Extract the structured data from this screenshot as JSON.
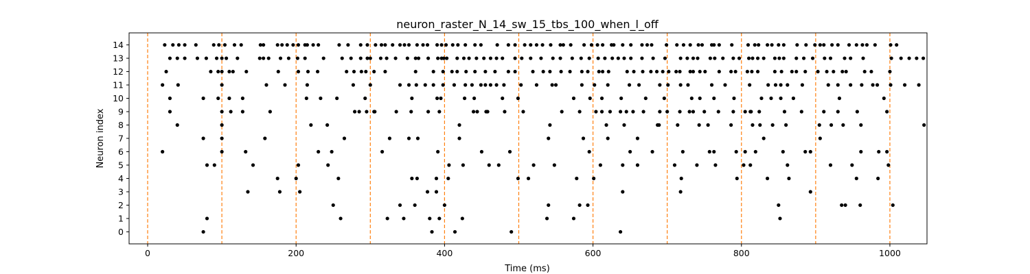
{
  "chart_data": {
    "type": "scatter",
    "title": "neuron_raster_N_14_sw_15_tbs_100_when_l_off",
    "xlabel": "Time (ms)",
    "ylabel": "Neuron index",
    "xlim": [
      -25,
      1050
    ],
    "ylim": [
      -0.9,
      14.9
    ],
    "xticks": [
      0,
      200,
      400,
      600,
      800,
      1000
    ],
    "yticks": [
      0,
      1,
      2,
      3,
      4,
      5,
      6,
      7,
      8,
      9,
      10,
      11,
      12,
      13,
      14
    ],
    "grid": false,
    "marker_color": "#000000",
    "vline_color": "#ff7f0e",
    "vlines": [
      0,
      100,
      200,
      300,
      400,
      500,
      600,
      700,
      800,
      900,
      1000
    ],
    "spikes": [
      [
        [
          75,
          383,
          414,
          490,
          637
        ],
        [
          80,
          260,
          323,
          345,
          380,
          393,
          424,
          538,
          574,
          852
        ],
        [
          250,
          340,
          400,
          360,
          540,
          593,
          582,
          850,
          935,
          940,
          960,
          1004
        ],
        [
          135,
          178,
          205,
          377,
          389,
          640,
          718,
          893
        ],
        [
          175,
          200,
          257,
          356,
          363,
          389,
          405,
          499,
          513,
          578,
          601,
          719,
          794,
          835,
          864,
          955,
          984
        ],
        [
          80,
          90,
          142,
          203,
          243,
          406,
          425,
          460,
          473,
          520,
          548,
          610,
          640,
          660,
          710,
          740,
          765,
          803,
          812,
          862,
          920,
          949,
          998
        ],
        [
          20,
          100,
          132,
          230,
          248,
          316,
          391,
          450,
          488,
          595,
          650,
          680,
          721,
          757,
          763,
          793,
          805,
          819,
          856,
          886,
          893,
          961,
          985,
          996
        ],
        [
          75,
          100,
          158,
          265,
          326,
          352,
          364,
          420,
          540,
          587,
          620,
          660,
          830,
          906
        ],
        [
          40,
          100,
          220,
          242,
          420,
          542,
          618,
          642,
          687,
          689,
          714,
          743,
          755,
          786,
          825,
          815,
          842,
          860,
          905,
          921,
          937,
          961,
          1046
        ],
        [
          30,
          100,
          112,
          128,
          165,
          279,
          285,
          295,
          305,
          306,
          335,
          355,
          378,
          393,
          439,
          444,
          456,
          458,
          481,
          506,
          558,
          582,
          604,
          612,
          623,
          637,
          645,
          654,
          668,
          690,
          700,
          717,
          730,
          735,
          750,
          769,
          789,
          805,
          812,
          813,
          824,
          858,
          881,
          911,
          930,
          956,
          996
        ],
        [
          30,
          75,
          95,
          110,
          128,
          214,
          233,
          255,
          293,
          356,
          390,
          395,
          427,
          440,
          478,
          499,
          574,
          596,
          612,
          638,
          671,
          696,
          733,
          744,
          763,
          790,
          827,
          840,
          853,
          870,
          932,
          992
        ],
        [
          20,
          41,
          100,
          160,
          185,
          215,
          277,
          300,
          340,
          352,
          362,
          374,
          385,
          398,
          413,
          428,
          437,
          449,
          455,
          462,
          470,
          480,
          503,
          524,
          545,
          550,
          585,
          602,
          620,
          649,
          662,
          690,
          701,
          718,
          728,
          760,
          778,
          811,
          836,
          846,
          853,
          862,
          882,
          917,
          930,
          947,
          962,
          977,
          983,
          1001,
          1020,
          1039
        ],
        [
          25,
          85,
          95,
          100,
          110,
          115,
          133,
          176,
          203,
          216,
          229,
          268,
          278,
          288,
          294,
          305,
          320,
          361,
          385,
          398,
          410,
          417,
          429,
          441,
          455,
          468,
          486,
          495,
          519,
          533,
          542,
          557,
          569,
          585,
          593,
          608,
          613,
          621,
          646,
          655,
          667,
          678,
          686,
          694,
          702,
          712,
          717,
          731,
          735,
          744,
          751,
          770,
          786,
          792,
          808,
          814,
          822,
          845,
          854,
          868,
          874,
          886,
          903,
          915,
          924,
          936,
          941,
          966,
          975,
          1000
        ],
        [
          30,
          40,
          50,
          67,
          79,
          93,
          100,
          106,
          121,
          151,
          156,
          163,
          179,
          190,
          202,
          212,
          237,
          262,
          274,
          287,
          296,
          300,
          314,
          322,
          334,
          350,
          361,
          365,
          378,
          391,
          396,
          399,
          403,
          417,
          426,
          433,
          443,
          453,
          462,
          470,
          478,
          495,
          504,
          516,
          530,
          546,
          556,
          572,
          584,
          595,
          607,
          616,
          626,
          634,
          642,
          651,
          666,
          681,
          697,
          718,
          727,
          735,
          741,
          758,
          764,
          775,
          789,
          797,
          810,
          815,
          822,
          830,
          845,
          851,
          857,
          874,
          884,
          896,
          912,
          920,
          939,
          947,
          964,
          1002,
          1015,
          1026,
          1036,
          1045
        ]
      ],
      [
        [
          23,
          34,
          42,
          50,
          65,
          89,
          96,
          104,
          117,
          126,
          152,
          156,
          175,
          181,
          188,
          196,
          203,
          212,
          215,
          223,
          230,
          258,
          270,
          287,
          296,
          307,
          315,
          320,
          330,
          340,
          346,
          352,
          363,
          371,
          377,
          390,
          396,
          402,
          411,
          418,
          428,
          441,
          449,
          471,
          486,
          495,
          508,
          516,
          524,
          532,
          543,
          556,
          560,
          570,
          588,
          598,
          606,
          613,
          625,
          628,
          640,
          651,
          666,
          673,
          679,
          699,
          713,
          722,
          731,
          742,
          747,
          760,
          763,
          770,
          787,
          809,
          818,
          823,
          835,
          841,
          850,
          857,
          875,
          887,
          899,
          906,
          911,
          922,
          930,
          945,
          955,
          963,
          969,
          980,
          1001,
          1009
        ]
      ]
    ]
  }
}
